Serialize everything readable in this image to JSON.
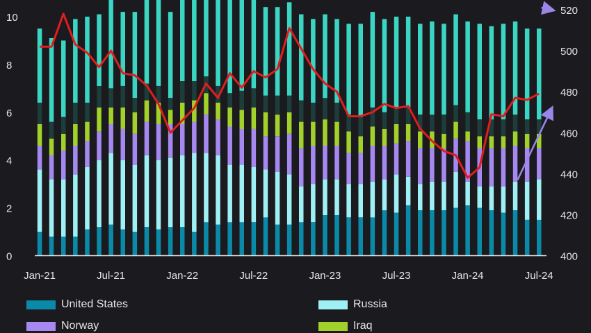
{
  "chart_data": {
    "type": "bar",
    "stacked": true,
    "x_ticks": [
      "Jan-21",
      "Jul-21",
      "Jan-22",
      "Jul-22",
      "Jan-23",
      "Jul-23",
      "Jan-24",
      "Jul-24"
    ],
    "y_left": {
      "ylim": [
        0,
        10.4
      ],
      "ticks": [
        "0",
        "2",
        "4",
        "6",
        "8",
        "10"
      ]
    },
    "y_right": {
      "ylim": [
        400,
        522
      ],
      "ticks": [
        "400",
        "420",
        "440",
        "460",
        "480",
        "500",
        "520"
      ]
    },
    "series": [
      {
        "name": "United States",
        "color": "#0a8aa8",
        "values": [
          1.0,
          0.8,
          0.8,
          0.8,
          1.1,
          1.2,
          1.3,
          1.1,
          1.0,
          1.2,
          1.1,
          1.2,
          1.2,
          1.0,
          1.4,
          1.3,
          1.4,
          1.4,
          1.4,
          1.6,
          1.3,
          1.3,
          1.4,
          1.4,
          1.7,
          1.7,
          1.6,
          1.6,
          1.6,
          1.9,
          1.8,
          2.1,
          1.9,
          1.9,
          1.9,
          2.0,
          2.1,
          2.0,
          1.9,
          1.8,
          1.9,
          1.5,
          1.5
        ]
      },
      {
        "name": "Russia",
        "color": "#9ff0f5",
        "values": [
          2.6,
          2.4,
          2.4,
          2.6,
          2.6,
          2.8,
          3.0,
          2.9,
          2.8,
          3.0,
          2.9,
          2.9,
          3.0,
          3.3,
          2.9,
          2.9,
          2.4,
          2.4,
          2.3,
          2.0,
          2.2,
          2.1,
          1.5,
          1.6,
          1.5,
          1.5,
          1.4,
          1.4,
          1.5,
          1.3,
          1.6,
          1.2,
          1.1,
          1.2,
          1.2,
          1.5,
          1.0,
          0.9,
          1.0,
          1.1,
          1.2,
          1.6,
          1.7
        ]
      },
      {
        "name": "Norway",
        "color": "#a689f0",
        "values": [
          1.0,
          1.0,
          1.2,
          1.2,
          1.1,
          1.2,
          1.2,
          1.3,
          1.3,
          1.4,
          1.5,
          1.4,
          1.3,
          1.3,
          1.6,
          1.5,
          1.6,
          1.5,
          1.6,
          1.4,
          1.5,
          1.7,
          1.6,
          1.6,
          1.4,
          1.4,
          1.3,
          1.3,
          1.5,
          1.4,
          1.3,
          1.5,
          1.5,
          1.4,
          1.4,
          1.4,
          1.7,
          1.6,
          1.6,
          1.6,
          1.5,
          1.4,
          1.3
        ]
      },
      {
        "name": "Iraq",
        "color": "#a3d12b",
        "values": [
          0.9,
          0.7,
          0.7,
          0.9,
          0.8,
          1.0,
          0.7,
          0.9,
          0.9,
          0.9,
          0.9,
          0.6,
          0.9,
          0.9,
          0.9,
          0.7,
          0.8,
          0.8,
          0.9,
          1.0,
          0.9,
          0.9,
          1.1,
          1.0,
          1.1,
          1.0,
          0.9,
          0.7,
          0.8,
          0.7,
          0.8,
          0.7,
          0.7,
          0.7,
          0.6,
          0.7,
          0.4,
          0.5,
          0.5,
          0.5,
          0.6,
          0.6,
          0.6
        ]
      },
      {
        "name": "",
        "color": "#1c3d3a",
        "values": [
          0.9,
          0.7,
          0.7,
          0.9,
          0.8,
          0.9,
          0.8,
          0.9,
          0.6,
          0.7,
          0.7,
          0.5,
          0.9,
          0.8,
          0.7,
          0.7,
          0.6,
          0.8,
          0.8,
          0.7,
          0.8,
          0.7,
          0.9,
          0.8,
          0.9,
          0.8,
          0.7,
          0.8,
          0.8,
          0.7,
          0.7,
          0.7,
          0.7,
          0.7,
          0.8,
          0.7,
          0.8,
          0.7,
          0.7,
          0.7,
          0.7,
          0.6,
          0.6
        ]
      },
      {
        "name": "",
        "color": "#3ad6c3",
        "values": [
          3.1,
          3.5,
          3.2,
          3.5,
          3.6,
          3.0,
          3.8,
          3.1,
          3.6,
          4.4,
          4.0,
          3.6,
          3.8,
          3.9,
          3.8,
          3.8,
          3.9,
          3.8,
          3.8,
          3.7,
          3.7,
          3.9,
          3.6,
          3.5,
          3.5,
          3.5,
          3.8,
          3.9,
          4.0,
          3.9,
          3.8,
          3.8,
          3.8,
          3.9,
          3.8,
          3.8,
          3.8,
          4.0,
          3.9,
          4.0,
          3.9,
          3.8,
          3.8
        ]
      }
    ],
    "line": {
      "name": "",
      "color": "#e01e1e",
      "values": [
        502,
        502,
        518,
        503,
        499,
        492,
        500,
        489,
        488,
        483,
        474,
        460,
        466,
        472,
        484,
        477,
        489,
        482,
        490,
        487,
        491,
        511,
        501,
        491,
        484,
        480,
        468,
        468,
        470,
        474,
        472,
        473,
        462,
        456,
        451,
        449,
        438,
        443,
        469,
        468,
        477,
        476,
        479
      ]
    },
    "arrows": [
      {
        "color": "#9a86e8",
        "from": [
          40.2,
          437
        ],
        "to": [
          43.0,
          471
        ]
      },
      {
        "color": "#9a86e8",
        "from": [
          42.2,
          521
        ],
        "to": [
          43.0,
          520
        ]
      }
    ],
    "legend": [
      {
        "label": "United States",
        "color": "#0a8aa8"
      },
      {
        "label": "Russia",
        "color": "#9ff0f5"
      },
      {
        "label": "Norway",
        "color": "#a689f0"
      },
      {
        "label": "Iraq",
        "color": "#a3d12b"
      }
    ],
    "grid": false
  }
}
